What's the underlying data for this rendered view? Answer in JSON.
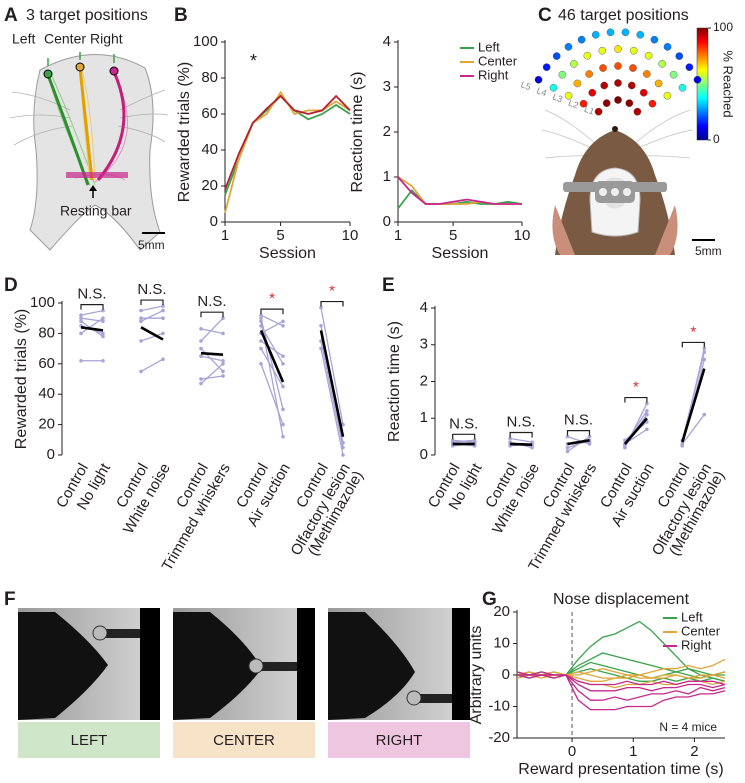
{
  "panels": {
    "A": {
      "letter": "A",
      "title": "3 target positions",
      "labels": [
        "Left",
        "Center",
        "Right"
      ],
      "resting_bar": "Resting bar",
      "scale": "5mm"
    },
    "B": {
      "letter": "B"
    },
    "C": {
      "letter": "C",
      "title": "46 target positions",
      "scale": "5mm",
      "rows": [
        {
          "label": "L1",
          "values": [
            95,
            98,
            100,
            98,
            95
          ]
        },
        {
          "label": "L2",
          "values": [
            85,
            90,
            95,
            95,
            95,
            90,
            85
          ]
        },
        {
          "label": "L3",
          "values": [
            60,
            70,
            75,
            80,
            80,
            80,
            75,
            70,
            60
          ]
        },
        {
          "label": "L4",
          "values": [
            40,
            50,
            55,
            60,
            60,
            65,
            60,
            60,
            55,
            50,
            40
          ]
        },
        {
          "label": "L5",
          "values": [
            10,
            15,
            20,
            25,
            25,
            30,
            30,
            30,
            30,
            25,
            25,
            20,
            15,
            10
          ]
        }
      ],
      "colorbar": {
        "label": "% Reached",
        "lim": [
          0,
          100
        ],
        "ticks": [
          0,
          100
        ]
      }
    },
    "D": {
      "letter": "D"
    },
    "E": {
      "letter": "E"
    },
    "F": {
      "letter": "F",
      "labels": [
        "LEFT",
        "CENTER",
        "RIGHT"
      ],
      "colors": [
        "#cfe6c8",
        "#f7e3c8",
        "#efc6e0"
      ]
    },
    "G": {
      "letter": "G"
    }
  },
  "chart_data": [
    {
      "type": "line",
      "ylabel": "Rewarded trials (%)",
      "xlabel": "Session",
      "annotation": "*",
      "annotation_color": "#e0282e",
      "x": [
        1,
        2,
        3,
        4,
        5,
        6,
        7,
        8,
        9,
        10
      ],
      "xlim": [
        1,
        10
      ],
      "xticks": [
        1,
        5,
        10
      ],
      "ylim": [
        0,
        100
      ],
      "yticks": [
        0,
        20,
        40,
        60,
        80,
        100
      ],
      "series": [
        {
          "name": "Left",
          "color": "#3aa34a",
          "values": [
            15,
            35,
            55,
            62,
            70,
            62,
            57,
            60,
            65,
            60
          ]
        },
        {
          "name": "Center",
          "color": "#e0a63a",
          "values": [
            5,
            35,
            55,
            60,
            72,
            60,
            62,
            62,
            67,
            62
          ]
        },
        {
          "name": "Right",
          "color": "#b3202f",
          "values": [
            18,
            38,
            55,
            63,
            70,
            62,
            60,
            62,
            70,
            62
          ]
        }
      ]
    },
    {
      "type": "line",
      "ylabel": "Reaction time (s)",
      "xlabel": "Session",
      "legend": "upper right",
      "x": [
        1,
        2,
        3,
        4,
        5,
        6,
        7,
        8,
        9,
        10
      ],
      "xlim": [
        1,
        10
      ],
      "xticks": [
        1,
        5,
        10
      ],
      "ylim": [
        0,
        4
      ],
      "yticks": [
        0,
        1,
        2,
        3,
        4
      ],
      "series": [
        {
          "name": "Left",
          "color": "#3aa34a",
          "values": [
            0.3,
            0.7,
            0.4,
            0.4,
            0.4,
            0.45,
            0.4,
            0.4,
            0.45,
            0.4
          ]
        },
        {
          "name": "Center",
          "color": "#e0a63a",
          "values": [
            1.0,
            0.8,
            0.4,
            0.4,
            0.4,
            0.4,
            0.45,
            0.4,
            0.4,
            0.4
          ]
        },
        {
          "name": "Right",
          "color": "#c8288c",
          "values": [
            1.0,
            0.65,
            0.4,
            0.4,
            0.45,
            0.5,
            0.45,
            0.4,
            0.4,
            0.4
          ]
        }
      ]
    },
    {
      "type": "paired",
      "ylabel": "Rewarded trials (%)",
      "ylim": [
        0,
        100
      ],
      "yticks": [
        0,
        20,
        40,
        60,
        80,
        100
      ],
      "subject_color": "#a9a3d6",
      "mean_color": "#000000",
      "groups": [
        {
          "control_label": "Control",
          "test_label": [
            "No light"
          ],
          "significance": "N.S.",
          "significance_color": "#231f20",
          "mean": [
            84,
            82
          ],
          "subjects": [
            [
              92,
              95
            ],
            [
              88,
              78
            ],
            [
              80,
              90
            ],
            [
              62,
              62
            ],
            [
              85,
              80
            ],
            [
              90,
              88
            ]
          ]
        },
        {
          "control_label": "Control",
          "test_label": [
            "White noise"
          ],
          "significance": "N.S.",
          "significance_color": "#231f20",
          "mean": [
            84,
            76
          ],
          "subjects": [
            [
              95,
              98
            ],
            [
              88,
              95
            ],
            [
              75,
              80
            ],
            [
              55,
              63
            ],
            [
              90,
              90
            ]
          ]
        },
        {
          "control_label": "Control",
          "test_label": [
            "Trimmed whiskers"
          ],
          "significance": "N.S.",
          "significance_color": "#231f20",
          "mean": [
            67,
            66
          ],
          "subjects": [
            [
              83,
              80
            ],
            [
              70,
              55
            ],
            [
              50,
              52
            ],
            [
              47,
              60
            ],
            [
              75,
              90
            ],
            [
              65,
              62
            ]
          ]
        },
        {
          "control_label": "Control",
          "test_label": [
            "Air suction"
          ],
          "significance": "*",
          "significance_color": "#e0282e",
          "mean": [
            82,
            48
          ],
          "subjects": [
            [
              92,
              85
            ],
            [
              90,
              30
            ],
            [
              88,
              12
            ],
            [
              85,
              60
            ],
            [
              75,
              65
            ],
            [
              60,
              20
            ],
            [
              80,
              88
            ],
            [
              70,
              45
            ]
          ]
        },
        {
          "control_label": "Control",
          "test_label": [
            "Olfactory lesion",
            "(Methimazole)"
          ],
          "significance": "*",
          "significance_color": "#e0282e",
          "mean": [
            82,
            12
          ],
          "subjects": [
            [
              97,
              20
            ],
            [
              85,
              8
            ],
            [
              75,
              5
            ],
            [
              70,
              0
            ]
          ]
        }
      ]
    },
    {
      "type": "paired",
      "ylabel": "Reaction time (s)",
      "ylim": [
        0,
        4
      ],
      "yticks": [
        0,
        1,
        2,
        3,
        4
      ],
      "subject_color": "#a9a3d6",
      "mean_color": "#000000",
      "groups": [
        {
          "control_label": "Control",
          "test_label": [
            "No light"
          ],
          "significance": "N.S.",
          "significance_color": "#231f20",
          "mean": [
            0.3,
            0.3
          ],
          "subjects": [
            [
              0.25,
              0.3
            ],
            [
              0.35,
              0.4
            ],
            [
              0.3,
              0.25
            ],
            [
              0.4,
              0.35
            ]
          ]
        },
        {
          "control_label": "Control",
          "test_label": [
            "White noise"
          ],
          "significance": "N.S.",
          "significance_color": "#231f20",
          "mean": [
            0.3,
            0.28
          ],
          "subjects": [
            [
              0.3,
              0.25
            ],
            [
              0.45,
              0.35
            ],
            [
              0.25,
              0.3
            ],
            [
              0.35,
              0.2
            ]
          ]
        },
        {
          "control_label": "Control",
          "test_label": [
            "Trimmed whiskers"
          ],
          "significance": "N.S.",
          "significance_color": "#231f20",
          "mean": [
            0.3,
            0.4
          ],
          "subjects": [
            [
              0.1,
              0.5
            ],
            [
              0.2,
              0.4
            ],
            [
              0.5,
              0.3
            ],
            [
              0.3,
              0.35
            ]
          ]
        },
        {
          "control_label": "Control",
          "test_label": [
            "Air suction"
          ],
          "significance": "*",
          "significance_color": "#e0282e",
          "mean": [
            0.3,
            1.0
          ],
          "subjects": [
            [
              0.2,
              1.4
            ],
            [
              0.3,
              1.2
            ],
            [
              0.4,
              0.9
            ],
            [
              0.3,
              0.7
            ],
            [
              0.25,
              1.1
            ]
          ]
        },
        {
          "control_label": "Control",
          "test_label": [
            "Olfactory lesion",
            "(Methimazole)"
          ],
          "significance": "*",
          "significance_color": "#e0282e",
          "mean": [
            0.35,
            2.35
          ],
          "subjects": [
            [
              0.3,
              2.9
            ],
            [
              0.4,
              2.8
            ],
            [
              0.25,
              2.6
            ],
            [
              0.3,
              1.1
            ]
          ]
        }
      ]
    },
    {
      "type": "line",
      "title": "Nose displacement",
      "ylabel": "Arbitrary units",
      "xlabel": "Reward presentation time (s)",
      "annotation": "N = 4 mice",
      "legend": "upper right",
      "vline": 0,
      "x": [
        -0.9,
        -0.7,
        -0.5,
        -0.3,
        -0.1,
        0.1,
        0.3,
        0.5,
        0.7,
        0.9,
        1.1,
        1.3,
        1.5,
        1.7,
        1.9,
        2.1,
        2.3,
        2.5
      ],
      "xlim": [
        -0.9,
        2.5
      ],
      "xticks": [
        0,
        1,
        2
      ],
      "ylim": [
        -20,
        20
      ],
      "yticks": [
        -20,
        -10,
        0,
        10,
        20
      ],
      "series": [
        {
          "name": "Left",
          "color": "#3aa34a",
          "traces": [
            [
              0,
              1,
              0,
              -1,
              0,
              5,
              9,
              12,
              13,
              15,
              17,
              14,
              10,
              6,
              2,
              0,
              -1,
              -2
            ],
            [
              1,
              0,
              1,
              0,
              0,
              3,
              5,
              7,
              6,
              5,
              4,
              3,
              2,
              1,
              2,
              1,
              0,
              1
            ],
            [
              0,
              -1,
              0,
              1,
              0,
              2,
              4,
              3,
              2,
              1,
              0,
              -1,
              0,
              1,
              0,
              -1,
              0,
              0
            ],
            [
              -1,
              0,
              0,
              -1,
              0,
              1,
              2,
              1,
              0,
              -1,
              -2,
              -2,
              -1,
              -2,
              -1,
              -2,
              -1,
              -2
            ]
          ]
        },
        {
          "name": "Center",
          "color": "#e0a63a",
          "traces": [
            [
              0,
              1,
              0,
              0,
              0,
              0,
              1,
              2,
              1,
              0,
              0,
              1,
              2,
              2,
              3,
              2,
              3,
              5
            ],
            [
              -1,
              0,
              0,
              -1,
              0,
              -1,
              -2,
              -2,
              -1,
              -1,
              0,
              -1,
              -1,
              0,
              -1,
              0,
              0,
              1
            ],
            [
              0,
              0,
              -1,
              0,
              0,
              -2,
              -3,
              -3,
              -4,
              -3,
              -3,
              -2,
              -3,
              -3,
              -2,
              -2,
              -3,
              -2
            ],
            [
              1,
              0,
              0,
              1,
              0,
              1,
              0,
              -1,
              -1,
              0,
              -1,
              -1,
              0,
              0,
              -1,
              -1,
              0,
              -1
            ]
          ]
        },
        {
          "name": "Right",
          "color": "#c8288c",
          "traces": [
            [
              0,
              -1,
              0,
              0,
              0,
              -8,
              -11,
              -11,
              -11,
              -10,
              -10,
              -10,
              -8,
              -7,
              -7,
              -6,
              -6,
              -5
            ],
            [
              0,
              0,
              1,
              0,
              0,
              -5,
              -8,
              -8,
              -7,
              -8,
              -7,
              -6,
              -6,
              -5,
              -6,
              -4,
              -5,
              -4
            ],
            [
              1,
              0,
              0,
              0,
              0,
              -3,
              -5,
              -5,
              -5,
              -4,
              -4,
              -5,
              -4,
              -4,
              -3,
              -3,
              -4,
              -3
            ],
            [
              0,
              0,
              0,
              -1,
              0,
              -2,
              -3,
              -3,
              -3,
              -2,
              -3,
              -3,
              -2,
              -3,
              -2,
              -2,
              -2,
              -3
            ]
          ]
        }
      ]
    }
  ]
}
